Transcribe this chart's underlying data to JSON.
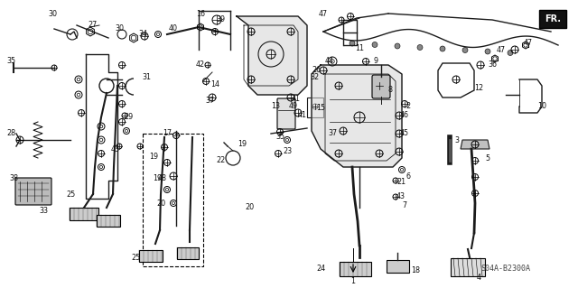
{
  "background_color": "#ffffff",
  "part_number_label": "S04A-B2300A",
  "fr_label": "FR.",
  "figsize": [
    6.4,
    3.19
  ],
  "dpi": 100,
  "line_color": "#1a1a1a",
  "label_fontsize": 5.8,
  "label_color": "#111111"
}
